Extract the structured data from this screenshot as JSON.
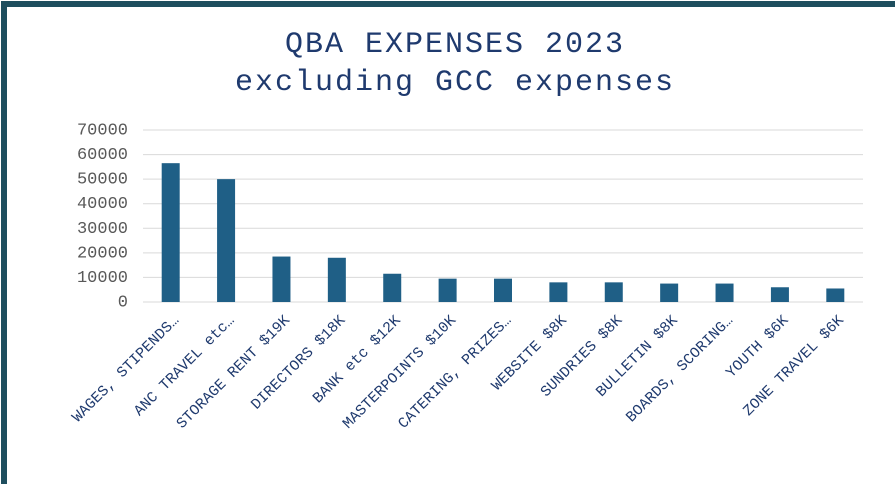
{
  "chart_data": {
    "type": "bar",
    "title": "QBA EXPENSES 2023",
    "subtitle": "excluding GCC expenses",
    "categories": [
      "WAGES, STIPENDS…",
      "ANC TRAVEL etc…",
      "STORAGE RENT $19K",
      "DIRECTORS $18K",
      "BANK etc $12K",
      "MASTERPOINTS $10K",
      "CATERING, PRIZES…",
      "WEBSITE $8K",
      "SUNDRIES $8K",
      "BULLETIN $8K",
      "BOARDS, SCORING…",
      "YOUTH $6K",
      "ZONE TRAVEL $6K"
    ],
    "values": [
      56500,
      50000,
      18500,
      18000,
      11500,
      9500,
      9500,
      8000,
      8000,
      7500,
      7500,
      6000,
      5500
    ],
    "color": "#1f5f86",
    "ylim": [
      0,
      70000
    ],
    "yticks": [
      0,
      10000,
      20000,
      30000,
      40000,
      50000,
      60000,
      70000
    ],
    "grid": true
  }
}
